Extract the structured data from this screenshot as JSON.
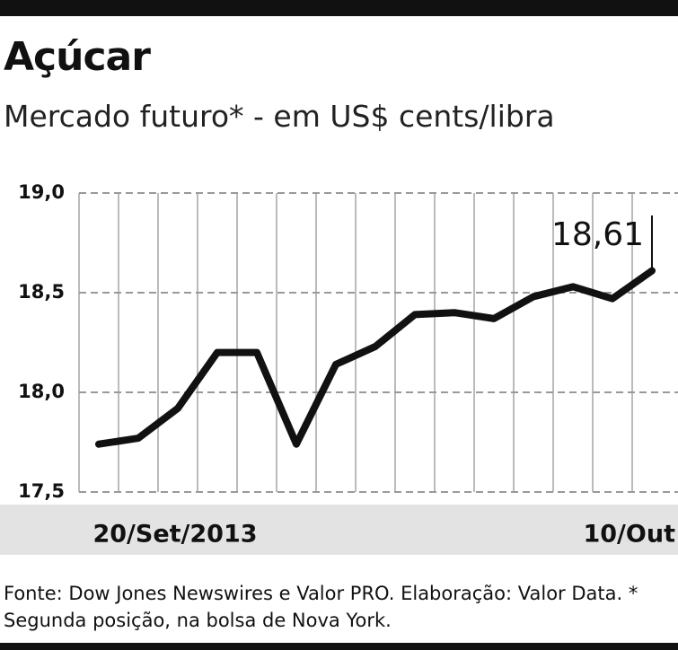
{
  "chart_data": {
    "type": "line",
    "title": "Açúcar",
    "subtitle": "Mercado futuro* - em US$ cents/libra",
    "categories": [
      "20/Set/2013",
      null,
      null,
      null,
      null,
      null,
      null,
      null,
      null,
      null,
      null,
      null,
      null,
      null,
      "10/Out"
    ],
    "values": [
      17.74,
      17.77,
      17.92,
      18.2,
      18.2,
      17.74,
      18.14,
      18.23,
      18.39,
      18.4,
      18.37,
      18.48,
      18.53,
      18.47,
      18.61
    ],
    "value_labels": [
      null,
      null,
      null,
      null,
      null,
      null,
      null,
      null,
      null,
      null,
      null,
      null,
      null,
      null,
      "18,61"
    ],
    "color": "#111111",
    "ylim": [
      17.5,
      19.0
    ],
    "yticks": [
      {
        "value": 17.5,
        "label": "17,5"
      },
      {
        "value": 18.0,
        "label": "18,0"
      },
      {
        "value": 18.5,
        "label": "18,5"
      },
      {
        "value": 19.0,
        "label": "19,0"
      }
    ],
    "grid": true,
    "source": "Fonte: Dow Jones Newswires e Valor PRO. Elaboração: Valor Data. * Segunda posição, na bolsa de Nova York."
  }
}
